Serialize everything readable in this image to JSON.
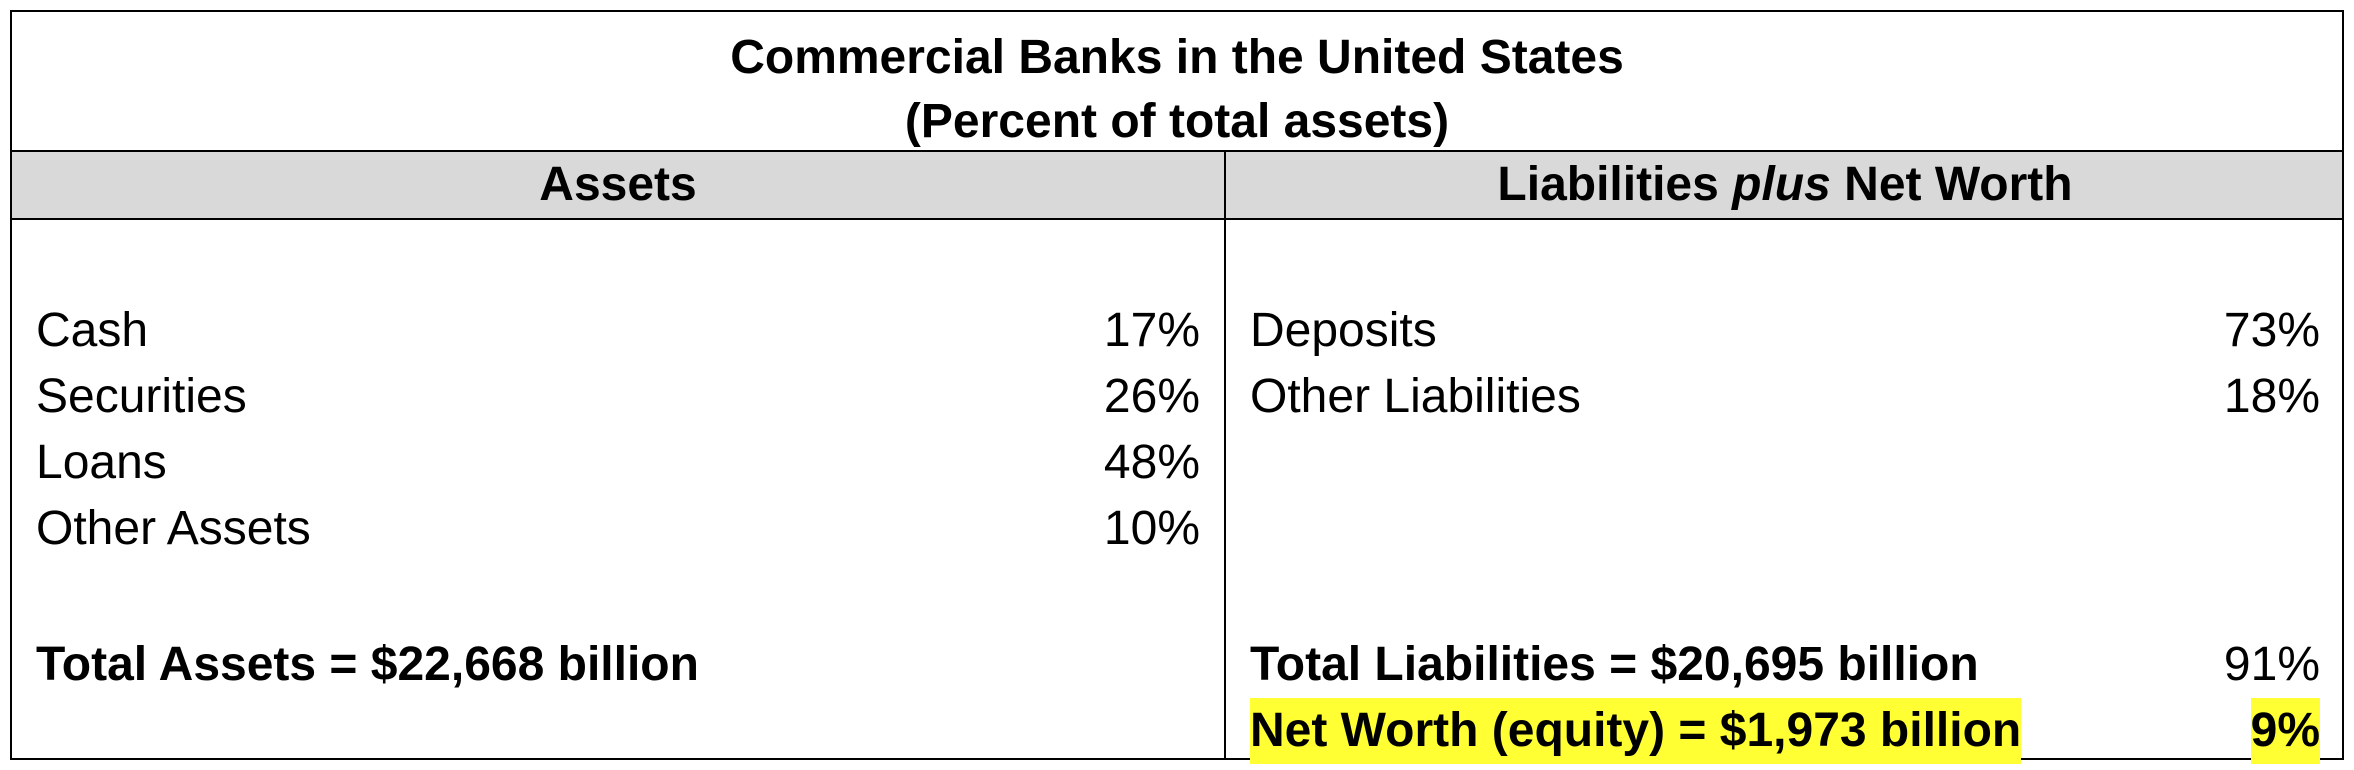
{
  "title": {
    "line1": "Commercial Banks in the United States",
    "line2": "(Percent of total assets)"
  },
  "headers": {
    "assets": "Assets",
    "liabilities_prefix": "Liabilities ",
    "liabilities_italic": "plus",
    "liabilities_suffix": " Net Worth"
  },
  "assets": [
    {
      "label": "Cash",
      "value": "17%"
    },
    {
      "label": "Securities",
      "value": "26%"
    },
    {
      "label": "Loans",
      "value": "48%"
    },
    {
      "label": "Other Assets",
      "value": "10%"
    }
  ],
  "liabilities": [
    {
      "label": "Deposits",
      "value": "73%"
    },
    {
      "label": "Other Liabilities",
      "value": "18%"
    }
  ],
  "totals": {
    "total_assets": "Total Assets = $22,668 billion",
    "total_liabilities": "Total Liabilities = $20,695 billion",
    "total_liabilities_value": "91%",
    "net_worth": "Net Worth (equity) = $1,973 billion",
    "net_worth_value": "9%"
  },
  "colors": {
    "header_bg": "#d9d9d9",
    "highlight": "#ffff33"
  }
}
